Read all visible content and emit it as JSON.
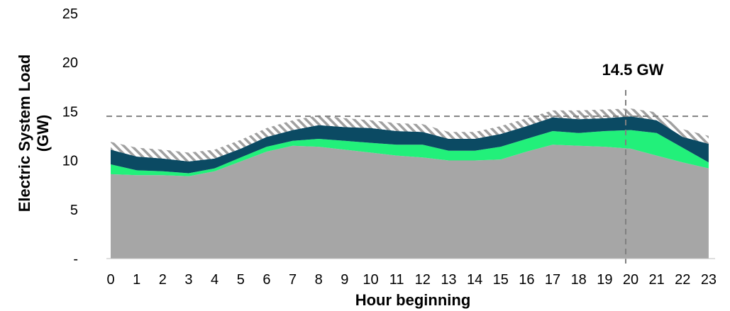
{
  "chart_data": {
    "type": "area",
    "xlabel": "Hour beginning",
    "ylabel_line1": "Electric System Load",
    "ylabel_line2": "(GW)",
    "ylim": [
      0,
      25
    ],
    "yticks": [
      {
        "value": 0,
        "label": "-"
      },
      {
        "value": 5,
        "label": "5"
      },
      {
        "value": 10,
        "label": "10"
      },
      {
        "value": 15,
        "label": "15"
      },
      {
        "value": 20,
        "label": "20"
      },
      {
        "value": 25,
        "label": "25"
      }
    ],
    "x": [
      0,
      1,
      2,
      3,
      4,
      5,
      6,
      7,
      8,
      9,
      10,
      11,
      12,
      13,
      14,
      15,
      16,
      17,
      18,
      19,
      20,
      21,
      22,
      23
    ],
    "x_tick_labels": [
      "0",
      "1",
      "2",
      "3",
      "4",
      "5",
      "6",
      "7",
      "8",
      "9",
      "10",
      "11",
      "12",
      "13",
      "14",
      "15",
      "16",
      "17",
      "18",
      "19",
      "20",
      "21",
      "22",
      "23"
    ],
    "series": [
      {
        "color": "#a6a6a6",
        "values": [
          8.6,
          8.5,
          8.5,
          8.4,
          8.9,
          9.9,
          10.9,
          11.5,
          11.4,
          11.1,
          10.8,
          10.5,
          10.3,
          10.0,
          10.0,
          10.1,
          10.9,
          11.6,
          11.5,
          11.4,
          11.2,
          10.5,
          9.8,
          9.2
        ]
      },
      {
        "color": "#22f07a",
        "values": [
          1.0,
          0.5,
          0.4,
          0.3,
          0.3,
          0.4,
          0.5,
          0.5,
          0.8,
          0.9,
          1.0,
          1.1,
          1.3,
          1.0,
          1.0,
          1.3,
          1.3,
          1.4,
          1.3,
          1.6,
          1.9,
          2.3,
          1.5,
          0.6
        ]
      },
      {
        "color": "#0b4a63",
        "values": [
          1.5,
          1.4,
          1.3,
          1.2,
          1.0,
          0.9,
          1.0,
          1.1,
          1.4,
          1.4,
          1.5,
          1.4,
          1.3,
          1.2,
          1.2,
          1.3,
          1.3,
          1.4,
          1.4,
          1.3,
          1.4,
          1.3,
          1.1,
          1.9
        ]
      },
      {
        "color": "hatched",
        "values": [
          0.8,
          0.9,
          0.9,
          0.9,
          0.9,
          0.9,
          0.9,
          1.0,
          1.0,
          0.9,
          0.8,
          0.8,
          0.8,
          0.7,
          0.7,
          0.8,
          0.8,
          0.7,
          0.9,
          0.9,
          0.8,
          0.8,
          0.8,
          0.8
        ]
      }
    ],
    "reference_line_y": 14.5,
    "reference_line_x": 20,
    "annotation": "14.5 GW",
    "grid": false
  },
  "colors": {
    "hatch": "#a0a0a0",
    "reference": "#808080",
    "axis": "#bfbfbf"
  }
}
